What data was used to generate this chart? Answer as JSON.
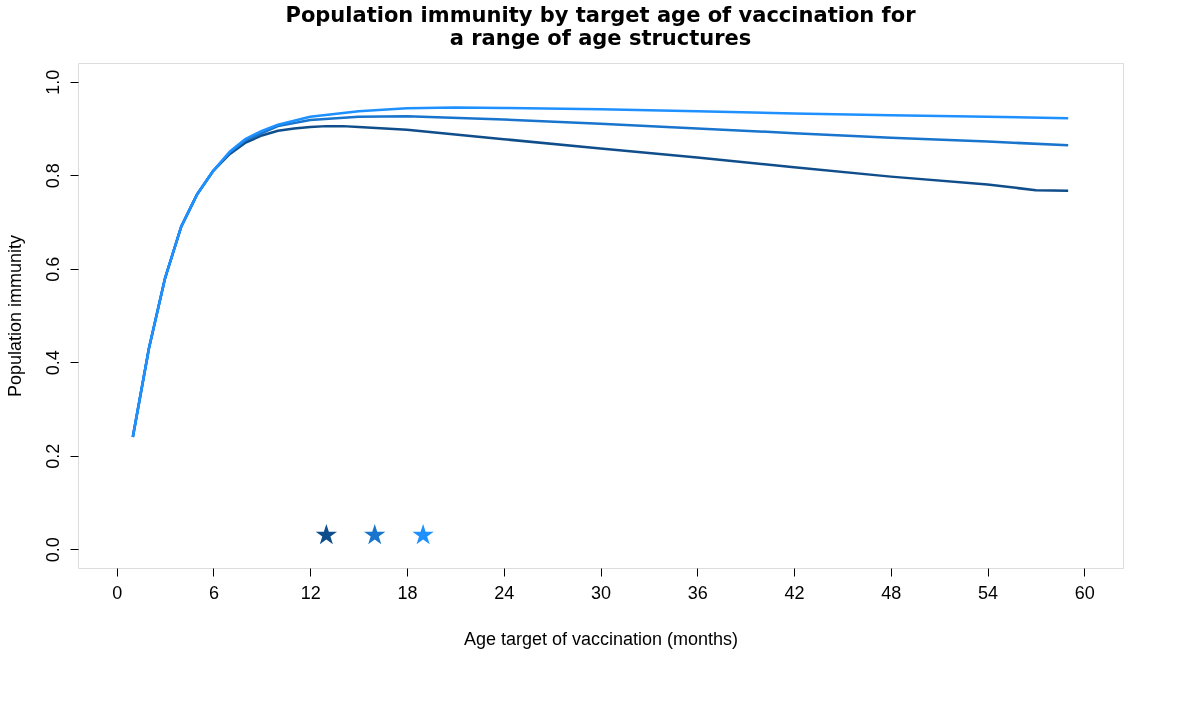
{
  "chart_data": {
    "type": "line",
    "title": "Population immunity by target age of vaccination for\na range of age structures",
    "xlabel": "Age target of vaccination (months)",
    "ylabel": "Population immunity",
    "xlim": [
      -2.4,
      62.4
    ],
    "ylim": [
      -0.04,
      1.04
    ],
    "xticks": [
      0,
      6,
      12,
      18,
      24,
      30,
      36,
      42,
      48,
      54,
      60
    ],
    "yticks": [
      {
        "value": 0,
        "label": "0.0"
      },
      {
        "value": 0.2,
        "label": "0.2"
      },
      {
        "value": 0.4,
        "label": "0.4"
      },
      {
        "value": 0.6,
        "label": "0.6"
      },
      {
        "value": 0.8,
        "label": "0.8"
      },
      {
        "value": 1,
        "label": "1.0"
      }
    ],
    "grid": false,
    "line_style": "solid",
    "marker": "none",
    "series": [
      {
        "color": "#104e8b",
        "x": [
          1,
          2,
          3,
          4,
          5,
          6,
          7,
          8,
          9,
          10,
          11,
          12,
          13,
          14,
          15,
          18,
          24,
          30,
          36,
          42,
          48,
          54,
          57,
          59
        ],
        "values": [
          0.24,
          0.43,
          0.58,
          0.69,
          0.76,
          0.81,
          0.845,
          0.87,
          0.885,
          0.895,
          0.9,
          0.903,
          0.905,
          0.905,
          0.903,
          0.897,
          0.877,
          0.857,
          0.838,
          0.817,
          0.797,
          0.78,
          0.768,
          0.767
        ]
      },
      {
        "color": "#1874cd",
        "x": [
          1,
          2,
          3,
          4,
          5,
          6,
          7,
          8,
          9,
          10,
          12,
          15,
          18,
          24,
          30,
          36,
          42,
          48,
          54,
          59
        ],
        "values": [
          0.24,
          0.43,
          0.58,
          0.69,
          0.76,
          0.81,
          0.848,
          0.875,
          0.89,
          0.905,
          0.918,
          0.925,
          0.926,
          0.919,
          0.91,
          0.9,
          0.89,
          0.88,
          0.872,
          0.864
        ]
      },
      {
        "color": "#1e90ff",
        "x": [
          1,
          2,
          3,
          4,
          5,
          6,
          7,
          8,
          9,
          10,
          12,
          15,
          18,
          21,
          24,
          30,
          36,
          42,
          48,
          54,
          59
        ],
        "values": [
          0.24,
          0.43,
          0.58,
          0.69,
          0.76,
          0.81,
          0.85,
          0.878,
          0.895,
          0.908,
          0.925,
          0.937,
          0.943,
          0.945,
          0.944,
          0.941,
          0.937,
          0.932,
          0.928,
          0.925,
          0.922
        ]
      },
      {
        "type": "scatter",
        "marker": "star",
        "x": [
          13,
          16,
          19
        ],
        "values": [
          0.03,
          0.03,
          0.03
        ],
        "colors": [
          "#104e8b",
          "#1874cd",
          "#1e90ff"
        ]
      }
    ]
  }
}
